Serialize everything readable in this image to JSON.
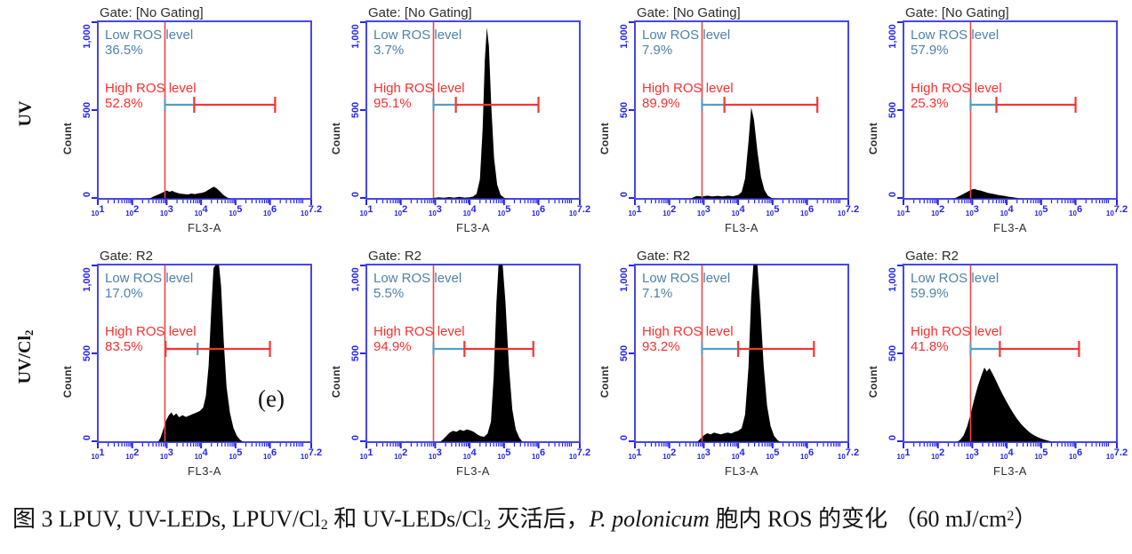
{
  "figure": {
    "rows": [
      {
        "id": "UV",
        "label_segments": [
          {
            "t": "UV"
          }
        ],
        "panel_indexes": [
          0,
          1,
          2,
          3
        ]
      },
      {
        "id": "UV/Cl2",
        "label_segments": [
          {
            "t": "UV/Cl"
          },
          {
            "t": "2",
            "style": "sub"
          }
        ],
        "panel_indexes": [
          4,
          5,
          6,
          7
        ]
      }
    ]
  },
  "axis": {
    "x_label": "FL3-A",
    "x_tick_base": "10",
    "x_ticks": [
      {
        "exp": "1",
        "pos": 1
      },
      {
        "exp": "2",
        "pos": 2
      },
      {
        "exp": "3",
        "pos": 3
      },
      {
        "exp": "4",
        "pos": 4
      },
      {
        "exp": "5",
        "pos": 5
      },
      {
        "exp": "6",
        "pos": 6
      },
      {
        "exp": "7.2",
        "pos": 7.2
      }
    ],
    "x_log_min": 1,
    "x_log_max": 7.2,
    "y_label": "Count",
    "y_ticks": [
      {
        "label": "1,000",
        "value": 1000
      },
      {
        "label": "500",
        "value": 500
      },
      {
        "label": "0",
        "value": 0
      }
    ],
    "y_max": 1000
  },
  "colors": {
    "border_blue": "#4646e8",
    "tick_blue": "#2525ee",
    "gate_red": "#ee4545",
    "marker_red": "#f43535",
    "text_red": "#fb2f2f",
    "text_teal": "#4e82ab",
    "marker_teal": "#5b9cc2",
    "hist_black": "#000000",
    "label_dark": "#2d2d2d"
  },
  "chart_data": [
    {
      "row": "UV",
      "type": "area",
      "gate_label": "Gate: [No Gating]",
      "low_label": "Low ROS level",
      "low_value": "36.5%",
      "high_label": "High ROS level",
      "high_value": "52.8%",
      "gate_x_log": 2.95,
      "annotation": null,
      "marker": {
        "y_count": 530,
        "teal": [
          2.95,
          3.8
        ],
        "teal_cap": "left",
        "red": [
          3.8,
          6.15
        ]
      },
      "outline": [
        [
          2.45,
          0
        ],
        [
          2.55,
          6
        ],
        [
          2.62,
          14
        ],
        [
          2.7,
          20
        ],
        [
          2.78,
          26
        ],
        [
          2.86,
          34
        ],
        [
          2.94,
          42
        ],
        [
          3.0,
          47
        ],
        [
          3.08,
          40
        ],
        [
          3.16,
          45
        ],
        [
          3.24,
          38
        ],
        [
          3.32,
          33
        ],
        [
          3.42,
          29
        ],
        [
          3.52,
          27
        ],
        [
          3.62,
          25
        ],
        [
          3.72,
          30
        ],
        [
          3.82,
          27
        ],
        [
          3.92,
          31
        ],
        [
          4.02,
          34
        ],
        [
          4.12,
          40
        ],
        [
          4.22,
          52
        ],
        [
          4.32,
          64
        ],
        [
          4.38,
          68
        ],
        [
          4.46,
          58
        ],
        [
          4.56,
          40
        ],
        [
          4.66,
          20
        ],
        [
          4.76,
          8
        ],
        [
          4.85,
          0
        ]
      ]
    },
    {
      "row": "UV",
      "type": "area",
      "gate_label": "Gate: [No Gating]",
      "low_label": "Low ROS level",
      "low_value": "3.7%",
      "high_label": "High ROS level",
      "high_value": "95.1%",
      "gate_x_log": 2.95,
      "annotation": null,
      "marker": {
        "y_count": 530,
        "teal": [
          2.95,
          3.6
        ],
        "teal_cap": "left",
        "red": [
          3.6,
          6.0
        ]
      },
      "outline": [
        [
          2.85,
          0
        ],
        [
          2.95,
          5
        ],
        [
          3.1,
          9
        ],
        [
          3.25,
          6
        ],
        [
          3.4,
          10
        ],
        [
          3.55,
          7
        ],
        [
          3.7,
          11
        ],
        [
          3.85,
          7
        ],
        [
          4.0,
          9
        ],
        [
          4.1,
          13
        ],
        [
          4.2,
          28
        ],
        [
          4.3,
          110
        ],
        [
          4.38,
          400
        ],
        [
          4.44,
          780
        ],
        [
          4.5,
          965
        ],
        [
          4.56,
          860
        ],
        [
          4.63,
          520
        ],
        [
          4.71,
          230
        ],
        [
          4.8,
          80
        ],
        [
          4.9,
          22
        ],
        [
          5.0,
          7
        ],
        [
          5.1,
          0
        ]
      ]
    },
    {
      "row": "UV",
      "type": "area",
      "gate_label": "Gate: [No Gating]",
      "low_label": "Low ROS level",
      "low_value": "7.9%",
      "high_label": "High ROS level",
      "high_value": "89.9%",
      "gate_x_log": 2.95,
      "annotation": null,
      "marker": {
        "y_count": 530,
        "teal": [
          2.95,
          3.6
        ],
        "teal_cap": "left",
        "red": [
          3.6,
          6.3
        ]
      },
      "outline": [
        [
          2.6,
          0
        ],
        [
          2.7,
          9
        ],
        [
          2.8,
          16
        ],
        [
          2.95,
          13
        ],
        [
          3.1,
          18
        ],
        [
          3.25,
          14
        ],
        [
          3.4,
          17
        ],
        [
          3.55,
          14
        ],
        [
          3.7,
          18
        ],
        [
          3.85,
          15
        ],
        [
          4.0,
          22
        ],
        [
          4.1,
          38
        ],
        [
          4.2,
          115
        ],
        [
          4.3,
          320
        ],
        [
          4.38,
          515
        ],
        [
          4.46,
          445
        ],
        [
          4.56,
          265
        ],
        [
          4.66,
          125
        ],
        [
          4.76,
          52
        ],
        [
          4.86,
          18
        ],
        [
          4.96,
          6
        ],
        [
          5.06,
          0
        ]
      ]
    },
    {
      "row": "UV",
      "type": "area",
      "gate_label": "Gate: [No Gating]",
      "low_label": "Low ROS level",
      "low_value": "57.9%",
      "high_label": "High ROS level",
      "high_value": "25.3%",
      "gate_x_log": 2.95,
      "annotation": null,
      "marker": {
        "y_count": 530,
        "teal": [
          2.95,
          3.7
        ],
        "teal_cap": "left",
        "red": [
          3.7,
          6.0
        ]
      },
      "outline": [
        [
          2.45,
          0
        ],
        [
          2.55,
          9
        ],
        [
          2.65,
          19
        ],
        [
          2.75,
          29
        ],
        [
          2.85,
          39
        ],
        [
          2.95,
          50
        ],
        [
          3.05,
          56
        ],
        [
          3.15,
          50
        ],
        [
          3.25,
          46
        ],
        [
          3.35,
          40
        ],
        [
          3.45,
          34
        ],
        [
          3.55,
          30
        ],
        [
          3.65,
          26
        ],
        [
          3.75,
          22
        ],
        [
          3.85,
          19
        ],
        [
          3.95,
          16
        ],
        [
          4.05,
          12
        ],
        [
          4.15,
          10
        ],
        [
          4.25,
          7
        ],
        [
          4.35,
          4
        ],
        [
          4.45,
          0
        ]
      ]
    },
    {
      "row": "UV/Cl2",
      "type": "area",
      "gate_label": "Gate: R2",
      "low_label": "Low ROS level",
      "low_value": "17.0%",
      "high_label": "High ROS level",
      "high_value": "83.5%",
      "gate_x_log": 2.95,
      "annotation": {
        "text": "(e)",
        "x_log": 5.65,
        "y_count": 240
      },
      "marker": {
        "y_count": 525,
        "teal": [
          2.95,
          3.9
        ],
        "teal_cap": "right",
        "red": [
          2.97,
          6.0
        ]
      },
      "outline": [
        [
          2.75,
          0
        ],
        [
          2.82,
          25
        ],
        [
          2.9,
          70
        ],
        [
          2.98,
          120
        ],
        [
          3.06,
          150
        ],
        [
          3.14,
          168
        ],
        [
          3.2,
          148
        ],
        [
          3.28,
          162
        ],
        [
          3.36,
          140
        ],
        [
          3.46,
          152
        ],
        [
          3.56,
          142
        ],
        [
          3.66,
          150
        ],
        [
          3.76,
          158
        ],
        [
          3.86,
          166
        ],
        [
          3.96,
          175
        ],
        [
          4.06,
          195
        ],
        [
          4.14,
          260
        ],
        [
          4.22,
          430
        ],
        [
          4.3,
          760
        ],
        [
          4.36,
          980
        ],
        [
          4.42,
          1000
        ],
        [
          4.52,
          1000
        ],
        [
          4.58,
          880
        ],
        [
          4.66,
          560
        ],
        [
          4.74,
          310
        ],
        [
          4.84,
          165
        ],
        [
          4.94,
          80
        ],
        [
          5.04,
          35
        ],
        [
          5.14,
          12
        ],
        [
          5.24,
          0
        ]
      ]
    },
    {
      "row": "UV/Cl2",
      "type": "area",
      "gate_label": "Gate: R2",
      "low_label": "Low ROS level",
      "low_value": "5.5%",
      "high_label": "High ROS level",
      "high_value": "94.9%",
      "gate_x_log": 2.95,
      "annotation": null,
      "marker": {
        "y_count": 525,
        "teal": [
          2.95,
          3.85
        ],
        "teal_cap": "left",
        "red": [
          3.85,
          5.85
        ]
      },
      "outline": [
        [
          3.12,
          0
        ],
        [
          3.22,
          14
        ],
        [
          3.32,
          34
        ],
        [
          3.42,
          54
        ],
        [
          3.52,
          64
        ],
        [
          3.62,
          58
        ],
        [
          3.72,
          70
        ],
        [
          3.82,
          63
        ],
        [
          3.92,
          72
        ],
        [
          4.02,
          66
        ],
        [
          4.12,
          58
        ],
        [
          4.22,
          44
        ],
        [
          4.32,
          34
        ],
        [
          4.42,
          30
        ],
        [
          4.52,
          48
        ],
        [
          4.62,
          115
        ],
        [
          4.7,
          370
        ],
        [
          4.78,
          790
        ],
        [
          4.84,
          1000
        ],
        [
          4.96,
          1000
        ],
        [
          5.04,
          790
        ],
        [
          5.14,
          430
        ],
        [
          5.24,
          185
        ],
        [
          5.34,
          72
        ],
        [
          5.44,
          26
        ],
        [
          5.54,
          0
        ]
      ]
    },
    {
      "row": "UV/Cl2",
      "type": "area",
      "gate_label": "Gate: R2",
      "low_label": "Low ROS level",
      "low_value": "7.1%",
      "high_label": "High ROS level",
      "high_value": "93.2%",
      "gate_x_log": 2.95,
      "annotation": null,
      "marker": {
        "y_count": 525,
        "teal": [
          2.95,
          4.0
        ],
        "teal_cap": "left",
        "red": [
          4.0,
          6.2
        ]
      },
      "outline": [
        [
          2.8,
          0
        ],
        [
          2.9,
          18
        ],
        [
          3.0,
          38
        ],
        [
          3.1,
          50
        ],
        [
          3.2,
          44
        ],
        [
          3.3,
          54
        ],
        [
          3.4,
          48
        ],
        [
          3.5,
          44
        ],
        [
          3.6,
          50
        ],
        [
          3.7,
          54
        ],
        [
          3.8,
          49
        ],
        [
          3.9,
          58
        ],
        [
          4.0,
          64
        ],
        [
          4.1,
          78
        ],
        [
          4.2,
          155
        ],
        [
          4.3,
          420
        ],
        [
          4.38,
          820
        ],
        [
          4.44,
          1000
        ],
        [
          4.56,
          1000
        ],
        [
          4.64,
          770
        ],
        [
          4.74,
          430
        ],
        [
          4.84,
          205
        ],
        [
          4.94,
          92
        ],
        [
          5.04,
          36
        ],
        [
          5.14,
          12
        ],
        [
          5.24,
          0
        ]
      ]
    },
    {
      "row": "UV/Cl2",
      "type": "area",
      "gate_label": "Gate: R2",
      "low_label": "Low ROS level",
      "low_value": "59.9%",
      "high_label": "High ROS level",
      "high_value": "41.8%",
      "gate_x_log": 2.95,
      "annotation": null,
      "marker": {
        "y_count": 525,
        "teal": [
          2.95,
          3.8
        ],
        "teal_cap": "left",
        "red": [
          3.8,
          6.1
        ]
      },
      "outline": [
        [
          2.55,
          0
        ],
        [
          2.65,
          14
        ],
        [
          2.75,
          38
        ],
        [
          2.85,
          88
        ],
        [
          2.95,
          158
        ],
        [
          3.05,
          238
        ],
        [
          3.15,
          308
        ],
        [
          3.25,
          368
        ],
        [
          3.35,
          420
        ],
        [
          3.42,
          398
        ],
        [
          3.5,
          416
        ],
        [
          3.6,
          382
        ],
        [
          3.7,
          342
        ],
        [
          3.8,
          300
        ],
        [
          3.9,
          262
        ],
        [
          4.0,
          226
        ],
        [
          4.1,
          192
        ],
        [
          4.2,
          160
        ],
        [
          4.3,
          132
        ],
        [
          4.4,
          106
        ],
        [
          4.5,
          85
        ],
        [
          4.6,
          66
        ],
        [
          4.7,
          50
        ],
        [
          4.8,
          38
        ],
        [
          4.9,
          28
        ],
        [
          5.0,
          20
        ],
        [
          5.1,
          14
        ],
        [
          5.2,
          8
        ],
        [
          5.3,
          4
        ],
        [
          5.4,
          0
        ]
      ]
    }
  ],
  "caption": {
    "segments": [
      {
        "t": "图 3 LPUV, UV-LEDs, LPUV/Cl"
      },
      {
        "t": "2",
        "style": "sub"
      },
      {
        "t": " 和 UV-LEDs/Cl"
      },
      {
        "t": "2",
        "style": "sub"
      },
      {
        "t": " 灭活后，"
      },
      {
        "t": "P. polonicum",
        "style": "italic"
      },
      {
        "t": " 胞内 ROS 的变化 （60 mJ/cm"
      },
      {
        "t": "2",
        "style": "sup"
      },
      {
        "t": "）"
      }
    ]
  }
}
